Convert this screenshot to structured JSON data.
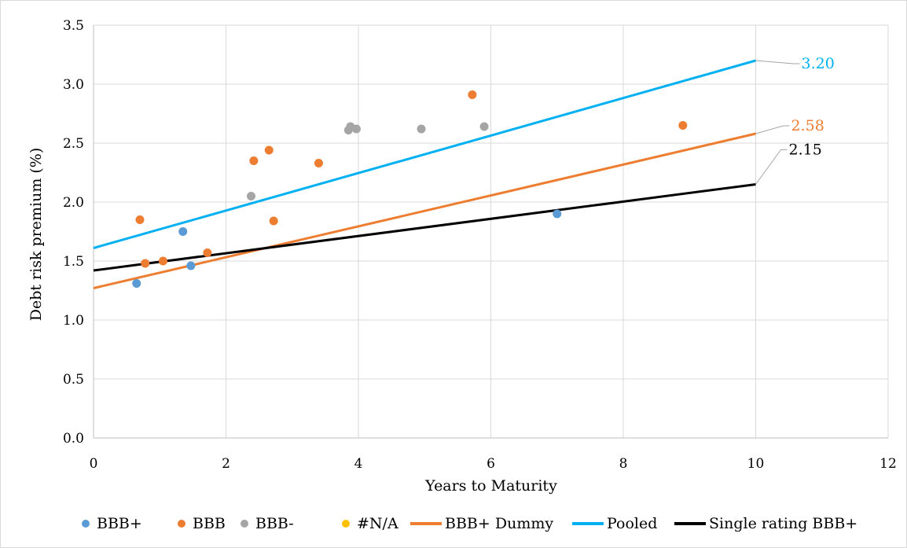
{
  "chart_data": {
    "type": "scatter",
    "xlabel": "Years to Maturity",
    "ylabel": "Debt risk premium (%)",
    "xlim": [
      0,
      12
    ],
    "ylim": [
      0,
      3.5
    ],
    "x_ticks": [
      "0",
      "2",
      "4",
      "6",
      "8",
      "10",
      "12"
    ],
    "y_ticks": [
      "0.0",
      "0.5",
      "1.0",
      "1.5",
      "2.0",
      "2.5",
      "3.0",
      "3.5"
    ],
    "grid": true,
    "legend_position": "bottom",
    "scatter_series": [
      {
        "name": "BBB+",
        "color": "#5b9bd5",
        "points": [
          [
            0.65,
            1.31
          ],
          [
            1.35,
            1.75
          ],
          [
            1.47,
            1.46
          ],
          [
            7.0,
            1.9
          ]
        ]
      },
      {
        "name": "BBB",
        "color": "#ed7d31",
        "points": [
          [
            0.7,
            1.85
          ],
          [
            0.78,
            1.48
          ],
          [
            1.05,
            1.5
          ],
          [
            1.72,
            1.57
          ],
          [
            2.42,
            2.35
          ],
          [
            2.65,
            2.44
          ],
          [
            2.72,
            1.84
          ],
          [
            3.4,
            2.33
          ],
          [
            5.72,
            2.91
          ],
          [
            8.9,
            2.65
          ]
        ]
      },
      {
        "name": "BBB-",
        "color": "#a5a5a5",
        "points": [
          [
            2.38,
            2.05
          ],
          [
            3.85,
            2.61
          ],
          [
            3.88,
            2.64
          ],
          [
            3.97,
            2.62
          ],
          [
            4.95,
            2.62
          ],
          [
            5.9,
            2.64
          ]
        ]
      },
      {
        "name": "#N/A",
        "color": "#ffc000",
        "points": []
      }
    ],
    "line_series": [
      {
        "name": "BBB+ Dummy",
        "color": "#ed7d31",
        "x": [
          0,
          10
        ],
        "y": [
          1.27,
          2.58
        ]
      },
      {
        "name": "Pooled",
        "color": "#00b0f0",
        "x": [
          0,
          10
        ],
        "y": [
          1.61,
          3.2
        ]
      },
      {
        "name": "Single rating BBB+",
        "color": "#000000",
        "x": [
          0,
          10
        ],
        "y": [
          1.42,
          2.15
        ]
      }
    ],
    "annotations": [
      {
        "text": "3.20",
        "series": "Pooled",
        "color": "#00b0f0"
      },
      {
        "text": "2.58",
        "series": "BBB+ Dummy",
        "color": "#ed7d31"
      },
      {
        "text": "2.15",
        "series": "Single rating BBB+",
        "color": "#000000"
      }
    ],
    "legend": [
      "BBB+",
      "BBB",
      "BBB-",
      "#N/A",
      "BBB+ Dummy",
      "Pooled",
      "Single rating BBB+"
    ]
  }
}
